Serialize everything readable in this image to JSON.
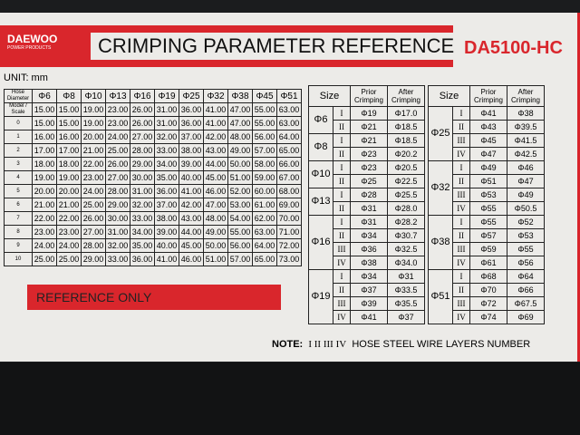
{
  "brand": {
    "name": "DAEWOO",
    "sub": "POWER PRODUCTS"
  },
  "title": "CRIMPING PARAMETER REFERENCE",
  "model": "DA5100-HC",
  "unit": "UNIT: mm",
  "left_table": {
    "corner": "Hose Diameter",
    "corner2": "Model / Scale",
    "columns": [
      "Φ6",
      "Φ8",
      "Φ10",
      "Φ13",
      "Φ16",
      "Φ19",
      "Φ25",
      "Φ32",
      "Φ38",
      "Φ45",
      "Φ51"
    ],
    "rows": [
      {
        "scale": "",
        "values": [
          "15.00",
          "15.00",
          "19.00",
          "23.00",
          "26.00",
          "31.00",
          "36.00",
          "41.00",
          "47.00",
          "55.00",
          "63.00"
        ]
      },
      {
        "scale": "0",
        "values": [
          "15.00",
          "15.00",
          "19.00",
          "23.00",
          "26.00",
          "31.00",
          "36.00",
          "41.00",
          "47.00",
          "55.00",
          "63.00"
        ]
      },
      {
        "scale": "1",
        "values": [
          "16.00",
          "16.00",
          "20.00",
          "24.00",
          "27.00",
          "32.00",
          "37.00",
          "42.00",
          "48.00",
          "56.00",
          "64.00"
        ]
      },
      {
        "scale": "2",
        "values": [
          "17.00",
          "17.00",
          "21.00",
          "25.00",
          "28.00",
          "33.00",
          "38.00",
          "43.00",
          "49.00",
          "57.00",
          "65.00"
        ]
      },
      {
        "scale": "3",
        "values": [
          "18.00",
          "18.00",
          "22.00",
          "26.00",
          "29.00",
          "34.00",
          "39.00",
          "44.00",
          "50.00",
          "58.00",
          "66.00"
        ]
      },
      {
        "scale": "4",
        "values": [
          "19.00",
          "19.00",
          "23.00",
          "27.00",
          "30.00",
          "35.00",
          "40.00",
          "45.00",
          "51.00",
          "59.00",
          "67.00"
        ]
      },
      {
        "scale": "5",
        "values": [
          "20.00",
          "20.00",
          "24.00",
          "28.00",
          "31.00",
          "36.00",
          "41.00",
          "46.00",
          "52.00",
          "60.00",
          "68.00"
        ]
      },
      {
        "scale": "6",
        "values": [
          "21.00",
          "21.00",
          "25.00",
          "29.00",
          "32.00",
          "37.00",
          "42.00",
          "47.00",
          "53.00",
          "61.00",
          "69.00"
        ]
      },
      {
        "scale": "7",
        "values": [
          "22.00",
          "22.00",
          "26.00",
          "30.00",
          "33.00",
          "38.00",
          "43.00",
          "48.00",
          "54.00",
          "62.00",
          "70.00"
        ]
      },
      {
        "scale": "8",
        "values": [
          "23.00",
          "23.00",
          "27.00",
          "31.00",
          "34.00",
          "39.00",
          "44.00",
          "49.00",
          "55.00",
          "63.00",
          "71.00"
        ]
      },
      {
        "scale": "9",
        "values": [
          "24.00",
          "24.00",
          "28.00",
          "32.00",
          "35.00",
          "40.00",
          "45.00",
          "50.00",
          "56.00",
          "64.00",
          "72.00"
        ]
      },
      {
        "scale": "10",
        "values": [
          "25.00",
          "25.00",
          "29.00",
          "33.00",
          "36.00",
          "41.00",
          "46.00",
          "51.00",
          "57.00",
          "65.00",
          "73.00"
        ]
      }
    ]
  },
  "right_headers": {
    "size": "Size",
    "prior": "Prior Crimping",
    "after": "After Crimping"
  },
  "right_a": [
    {
      "size": "Φ6",
      "rows": [
        [
          "I",
          "Φ19",
          "Φ17.0"
        ],
        [
          "II",
          "Φ21",
          "Φ18.5"
        ]
      ]
    },
    {
      "size": "Φ8",
      "rows": [
        [
          "I",
          "Φ21",
          "Φ18.5"
        ],
        [
          "II",
          "Φ23",
          "Φ20.2"
        ]
      ]
    },
    {
      "size": "Φ10",
      "rows": [
        [
          "I",
          "Φ23",
          "Φ20.5"
        ],
        [
          "II",
          "Φ25",
          "Φ22.5"
        ]
      ]
    },
    {
      "size": "Φ13",
      "rows": [
        [
          "I",
          "Φ28",
          "Φ25.5"
        ],
        [
          "II",
          "Φ31",
          "Φ28.0"
        ]
      ]
    },
    {
      "size": "Φ16",
      "rows": [
        [
          "I",
          "Φ31",
          "Φ28.2"
        ],
        [
          "II",
          "Φ34",
          "Φ30.7"
        ],
        [
          "III",
          "Φ36",
          "Φ32.5"
        ],
        [
          "IV",
          "Φ38",
          "Φ34.0"
        ]
      ]
    },
    {
      "size": "Φ19",
      "rows": [
        [
          "I",
          "Φ34",
          "Φ31"
        ],
        [
          "II",
          "Φ37",
          "Φ33.5"
        ],
        [
          "III",
          "Φ39",
          "Φ35.5"
        ],
        [
          "IV",
          "Φ41",
          "Φ37"
        ]
      ]
    }
  ],
  "right_b": [
    {
      "size": "Φ25",
      "rows": [
        [
          "I",
          "Φ41",
          "Φ38"
        ],
        [
          "II",
          "Φ43",
          "Φ39.5"
        ],
        [
          "III",
          "Φ45",
          "Φ41.5"
        ],
        [
          "IV",
          "Φ47",
          "Φ42.5"
        ]
      ]
    },
    {
      "size": "Φ32",
      "rows": [
        [
          "I",
          "Φ49",
          "Φ46"
        ],
        [
          "II",
          "Φ51",
          "Φ47"
        ],
        [
          "III",
          "Φ53",
          "Φ49"
        ],
        [
          "IV",
          "Φ55",
          "Φ50.5"
        ]
      ]
    },
    {
      "size": "Φ38",
      "rows": [
        [
          "I",
          "Φ55",
          "Φ52"
        ],
        [
          "II",
          "Φ57",
          "Φ53"
        ],
        [
          "III",
          "Φ59",
          "Φ55"
        ],
        [
          "IV",
          "Φ61",
          "Φ56"
        ]
      ]
    },
    {
      "size": "Φ51",
      "rows": [
        [
          "I",
          "Φ68",
          "Φ64"
        ],
        [
          "II",
          "Φ70",
          "Φ66"
        ],
        [
          "III",
          "Φ72",
          "Φ67.5"
        ],
        [
          "IV",
          "Φ74",
          "Φ69"
        ]
      ]
    }
  ],
  "reference": "REFERENCE ONLY",
  "note": {
    "label": "NOTE:",
    "layers": "I  II  III  IV",
    "text": "HOSE STEEL WIRE LAYERS NUMBER"
  },
  "colors": {
    "red": "#d9262c",
    "label": "#ecebe8"
  }
}
